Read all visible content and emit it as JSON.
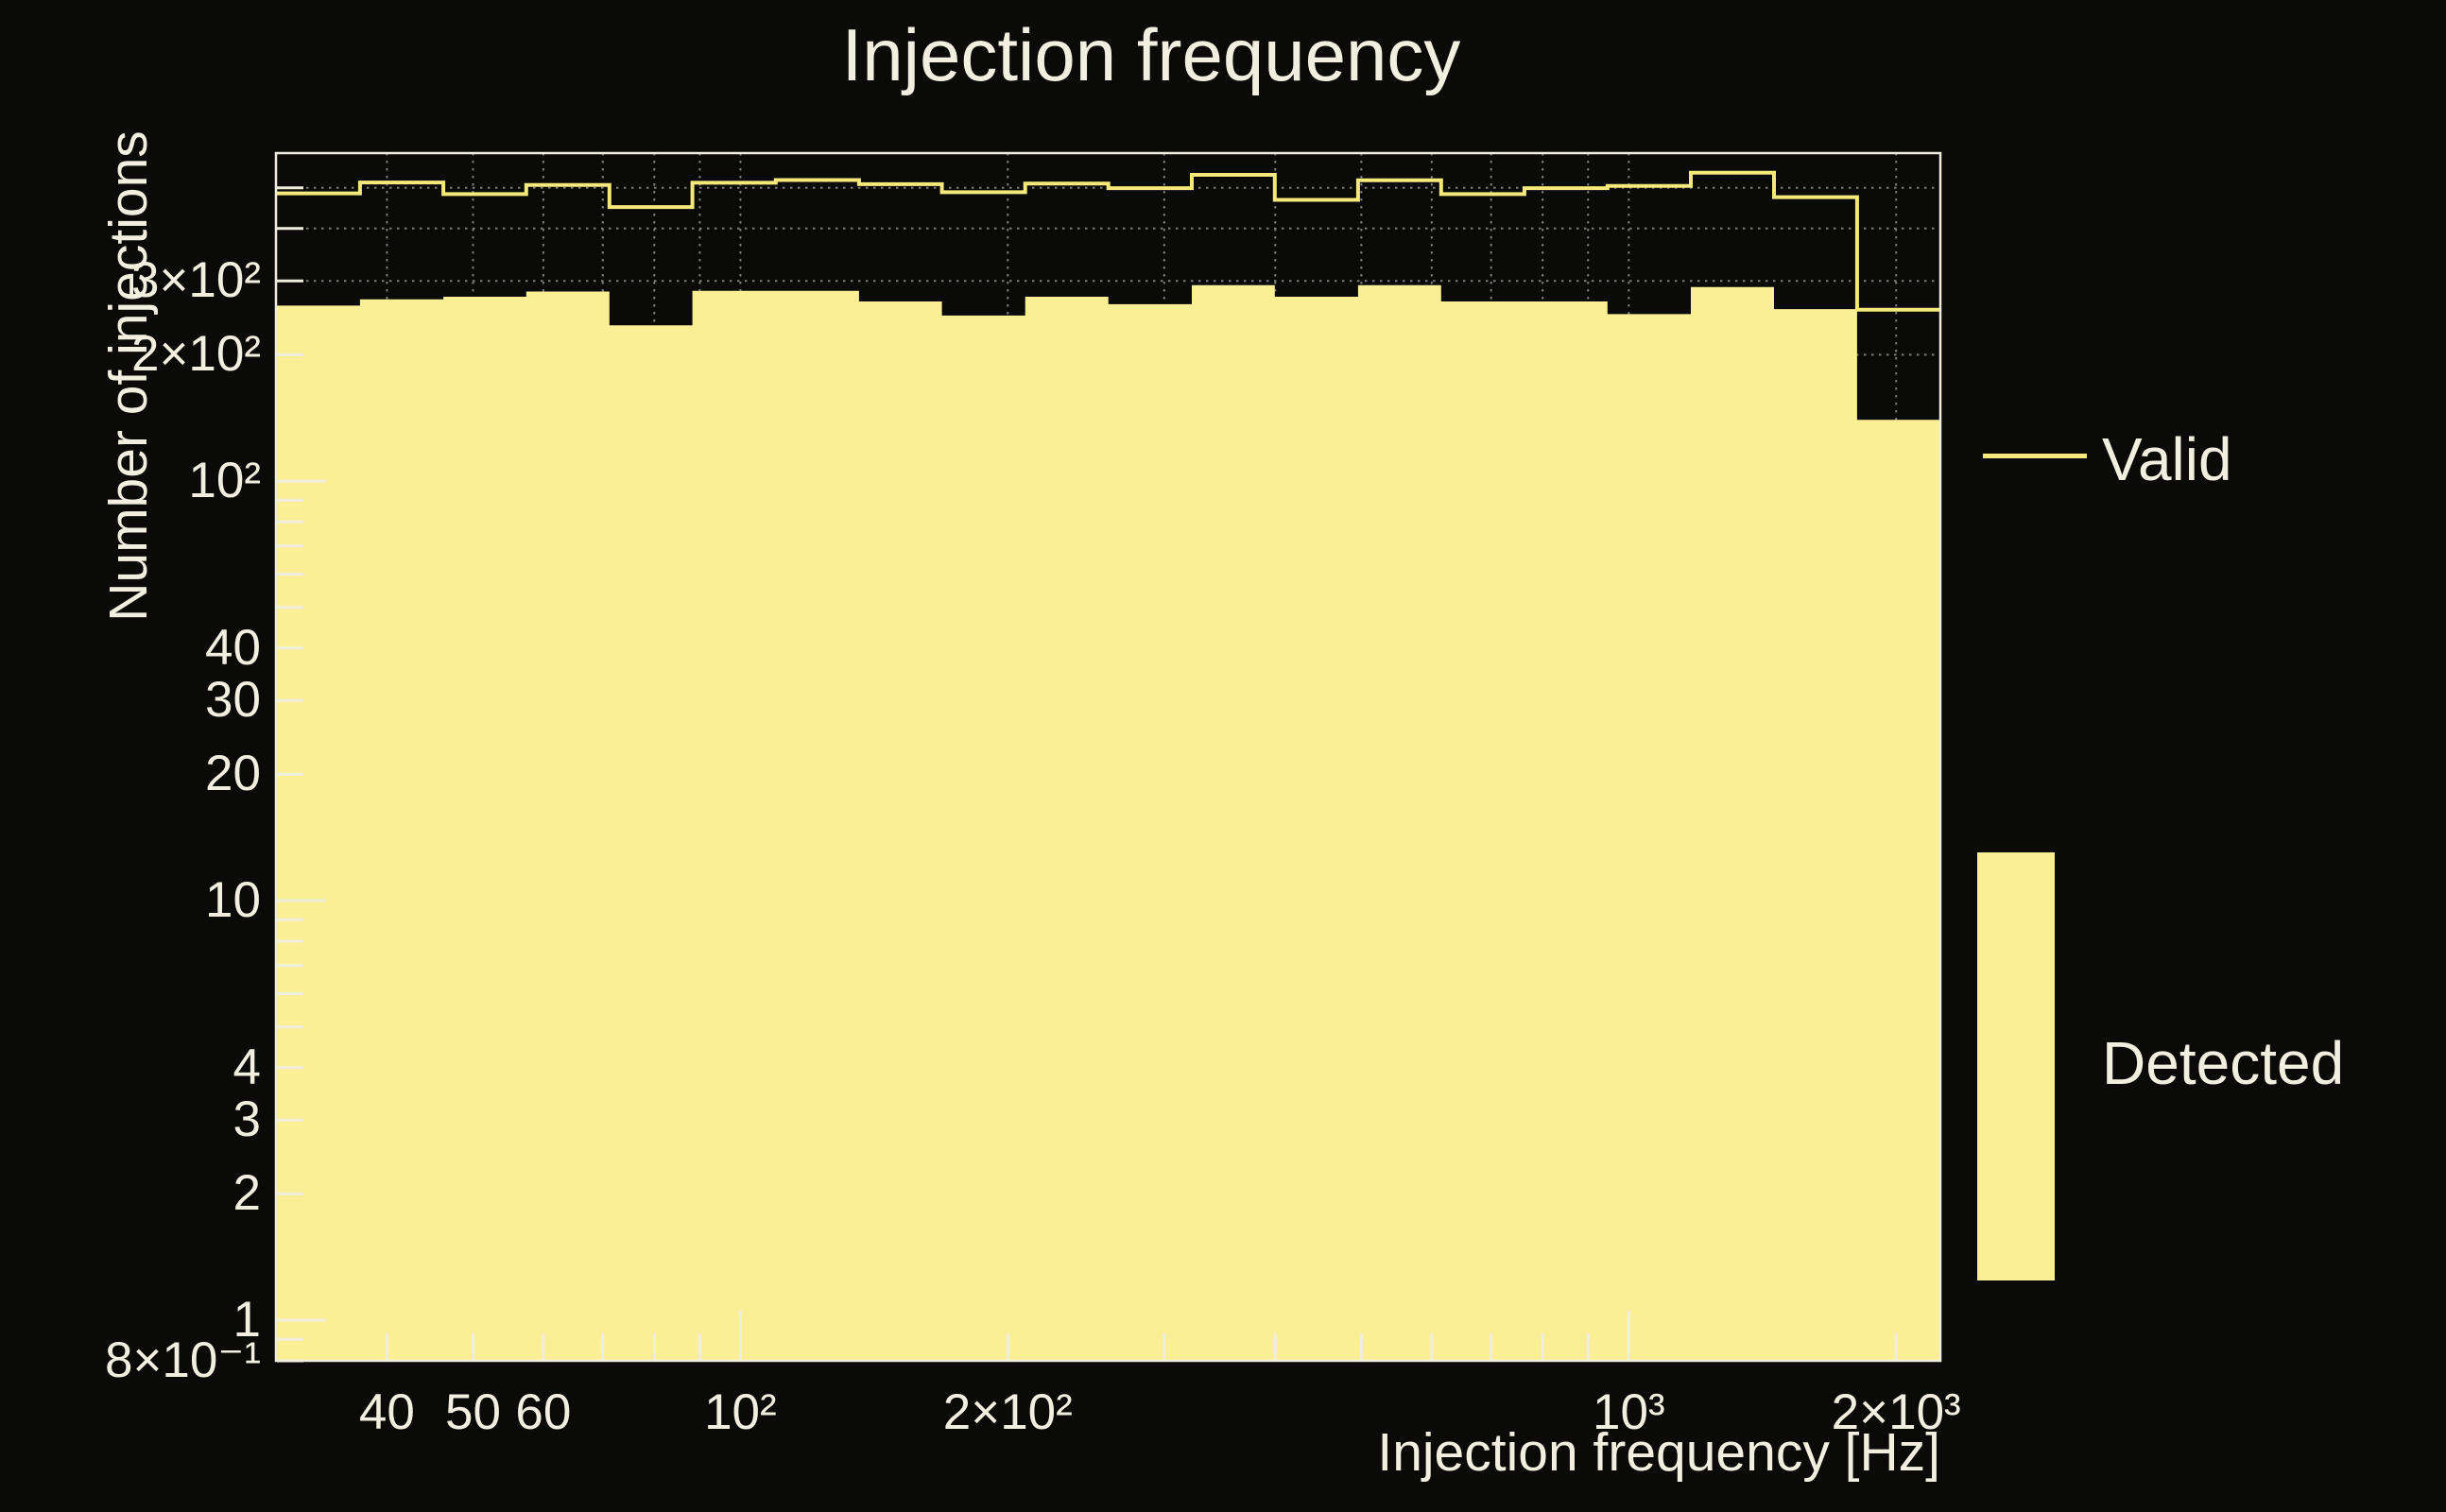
{
  "title": "Injection frequency",
  "axes": {
    "x_label": "Injection frequency [Hz]",
    "y_label": "Number of injections",
    "x_scale": "log",
    "y_scale": "log",
    "x_range_hz": [
      30,
      2243
    ],
    "y_range": [
      0.8,
      605
    ],
    "grid": "dotted gridlines at every log tick, drawn behind histogram",
    "x_ticks": [
      {
        "value": 40,
        "label": "40",
        "decade": false
      },
      {
        "value": 50,
        "label": "50",
        "decade": false
      },
      {
        "value": 60,
        "label": "60",
        "decade": false
      },
      {
        "value": 70,
        "label": "",
        "decade": false
      },
      {
        "value": 80,
        "label": "",
        "decade": false
      },
      {
        "value": 90,
        "label": "",
        "decade": false
      },
      {
        "value": 100,
        "label": "10²",
        "decade": true
      },
      {
        "value": 200,
        "label": "2×10²",
        "decade": false
      },
      {
        "value": 300,
        "label": "",
        "decade": false
      },
      {
        "value": 400,
        "label": "",
        "decade": false
      },
      {
        "value": 500,
        "label": "",
        "decade": false
      },
      {
        "value": 600,
        "label": "",
        "decade": false
      },
      {
        "value": 700,
        "label": "",
        "decade": false
      },
      {
        "value": 800,
        "label": "",
        "decade": false
      },
      {
        "value": 900,
        "label": "",
        "decade": false
      },
      {
        "value": 1000,
        "label": "10³",
        "decade": true
      },
      {
        "value": 2000,
        "label": "2×10³",
        "decade": false
      }
    ],
    "y_ticks": [
      {
        "value": 500,
        "label": "",
        "decade": false
      },
      {
        "value": 400,
        "label": "",
        "decade": false
      },
      {
        "value": 300,
        "label": "3×10²",
        "decade": false
      },
      {
        "value": 200,
        "label": "2×10²",
        "decade": false
      },
      {
        "value": 100,
        "label": "10²",
        "decade": true
      },
      {
        "value": 90,
        "label": "",
        "decade": false
      },
      {
        "value": 80,
        "label": "",
        "decade": false
      },
      {
        "value": 70,
        "label": "",
        "decade": false
      },
      {
        "value": 60,
        "label": "",
        "decade": false
      },
      {
        "value": 50,
        "label": "",
        "decade": false
      },
      {
        "value": 40,
        "label": "40",
        "decade": false
      },
      {
        "value": 30,
        "label": "30",
        "decade": false
      },
      {
        "value": 20,
        "label": "20",
        "decade": false
      },
      {
        "value": 10,
        "label": "10",
        "decade": true
      },
      {
        "value": 9,
        "label": "",
        "decade": false
      },
      {
        "value": 8,
        "label": "",
        "decade": false
      },
      {
        "value": 7,
        "label": "",
        "decade": false
      },
      {
        "value": 6,
        "label": "",
        "decade": false
      },
      {
        "value": 5,
        "label": "",
        "decade": false
      },
      {
        "value": 4,
        "label": "4",
        "decade": false
      },
      {
        "value": 3,
        "label": "3",
        "decade": false
      },
      {
        "value": 2,
        "label": "2",
        "decade": false
      },
      {
        "value": 1,
        "label": "1",
        "decade": true
      },
      {
        "value": 0.9,
        "label": "",
        "decade": false
      },
      {
        "value": 0.8,
        "label": "8×10⁻¹",
        "decade": false
      }
    ]
  },
  "legend": {
    "items": [
      {
        "label": "Valid",
        "swatch": "line"
      },
      {
        "label": "Detected",
        "swatch": "filled-box"
      }
    ]
  },
  "colors": {
    "background": "#0a0a08",
    "detected_fill": "#faef94",
    "valid_line": "#f5e97c",
    "text": "#f3efe0",
    "frame_and_ticks": "#f1edde",
    "gridline": "#7d7d76"
  },
  "chart_data": {
    "type": "histogram",
    "title": "Injection frequency",
    "xlabel": "Injection frequency [Hz]",
    "ylabel": "Number of injections",
    "x_scale": "log",
    "y_scale": "log",
    "xlim_hz": [
      30,
      2243
    ],
    "ylim": [
      0.8,
      605
    ],
    "legend_position": "right of axes",
    "bin_edges_hz": [
      30,
      37.3,
      46.3,
      57.4,
      71.2,
      88.3,
      109.6,
      136.0,
      168.6,
      209.2,
      259.5,
      322.2,
      399.5,
      495.8,
      614.9,
      763.1,
      946.4,
      1174.6,
      1457.2,
      1807.6,
      2243
    ],
    "series": [
      {
        "name": "Valid",
        "style": "step-line",
        "color": "#f5e97c",
        "values": [
          485,
          515,
          483,
          508,
          450,
          514,
          522,
          510,
          488,
          512,
          499,
          537,
          468,
          521,
          483,
          499,
          505,
          543,
          475,
          256
        ]
      },
      {
        "name": "Detected",
        "style": "step-filled",
        "color": "#faef94",
        "values": [
          262,
          271,
          275,
          283,
          235,
          284,
          284,
          268,
          248,
          275,
          264,
          293,
          275,
          293,
          268,
          268,
          250,
          290,
          257,
          140
        ]
      }
    ]
  }
}
